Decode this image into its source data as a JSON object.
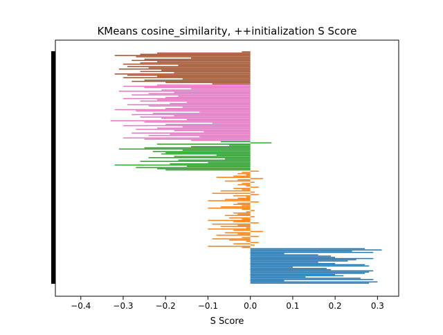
{
  "chart_data": {
    "type": "bar",
    "orientation": "horizontal",
    "title": "KMeans cosine_similarity, ++initialization S Score",
    "xlabel": "S Score",
    "ylabel": "",
    "xlim": [
      -0.46,
      0.35
    ],
    "xticks": [
      -0.4,
      -0.3,
      -0.2,
      -0.1,
      0.0,
      0.1,
      0.2,
      0.3
    ],
    "xtick_labels": [
      "−0.4",
      "−0.3",
      "−0.2",
      "−0.1",
      "0.0",
      "0.1",
      "0.2",
      "0.3"
    ],
    "grid": false,
    "legend": "none",
    "left_black_bar": true,
    "series": [
      {
        "color": "#1f77b4",
        "values": [
          0.28,
          0.3,
          0.08,
          0.29,
          0.26,
          0.13,
          0.22,
          0.2,
          0.27,
          0.28,
          0.29,
          0.19,
          0.18,
          0.1,
          0.28,
          0.27,
          0.2,
          0.16,
          0.23,
          0.25,
          0.29,
          0.2,
          0.19,
          0.16,
          0.08,
          0.29,
          0.24,
          0.31,
          0.27
        ]
      },
      {
        "color": "#ff7f0e",
        "values": [
          -0.02,
          -0.1,
          0.01,
          -0.04,
          0.02,
          -0.01,
          -0.05,
          -0.09,
          -0.02,
          0.02,
          -0.08,
          -0.03,
          -0.06,
          0.03,
          -0.04,
          -0.1,
          -0.01,
          -0.07,
          -0.03,
          -0.09,
          0.02,
          -0.04,
          -0.1,
          -0.02,
          -0.05,
          0.01,
          -0.06,
          -0.03,
          -0.04,
          -0.01,
          0.01,
          -0.02,
          -0.1,
          -0.07,
          -0.02,
          -0.04,
          -0.03,
          0.02,
          -0.1,
          -0.06,
          -0.03,
          -0.01,
          -0.04,
          0.02,
          -0.09,
          0.01,
          -0.07,
          -0.02,
          -0.04,
          0.02,
          -0.01,
          -0.03,
          -0.02,
          0.01,
          -0.06,
          -0.03,
          0.03,
          -0.08,
          -0.04,
          -0.01,
          -0.03,
          -0.02,
          0.02
        ]
      },
      {
        "color": "#2ca02c",
        "values": [
          -0.2,
          -0.22,
          -0.27,
          -0.15,
          -0.32,
          -0.19,
          -0.1,
          -0.26,
          -0.17,
          -0.06,
          -0.24,
          -0.18,
          -0.08,
          -0.21,
          -0.2,
          -0.23,
          -0.16,
          -0.31,
          -0.25,
          -0.14,
          -0.05,
          -0.22,
          0.05,
          -0.07
        ]
      },
      {
        "color": "#e377c2",
        "values": [
          -0.14,
          -0.25,
          -0.3,
          -0.12,
          -0.24,
          -0.19,
          -0.28,
          -0.11,
          -0.18,
          -0.27,
          -0.22,
          -0.16,
          -0.3,
          -0.2,
          -0.09,
          -0.25,
          -0.33,
          -0.15,
          -0.21,
          -0.26,
          -0.18,
          -0.28,
          -0.23,
          -0.12,
          -0.27,
          -0.32,
          -0.2,
          -0.16,
          -0.24,
          -0.29,
          -0.19,
          -0.15,
          -0.26,
          -0.22,
          -0.3,
          -0.2,
          -0.17,
          -0.28,
          -0.24,
          -0.18,
          -0.31,
          -0.21,
          -0.14,
          -0.25,
          -0.3,
          -0.22
        ]
      },
      {
        "color": "#a0522d",
        "values": [
          -0.09,
          -0.2,
          -0.28,
          -0.25,
          -0.16,
          -0.3,
          -0.22,
          -0.29,
          -0.32,
          -0.18,
          -0.26,
          -0.21,
          -0.31,
          -0.24,
          -0.29,
          -0.17,
          -0.3,
          -0.26,
          -0.22,
          -0.28,
          -0.25,
          -0.14,
          -0.27,
          -0.32,
          -0.26,
          -0.22,
          -0.02
        ]
      }
    ]
  }
}
